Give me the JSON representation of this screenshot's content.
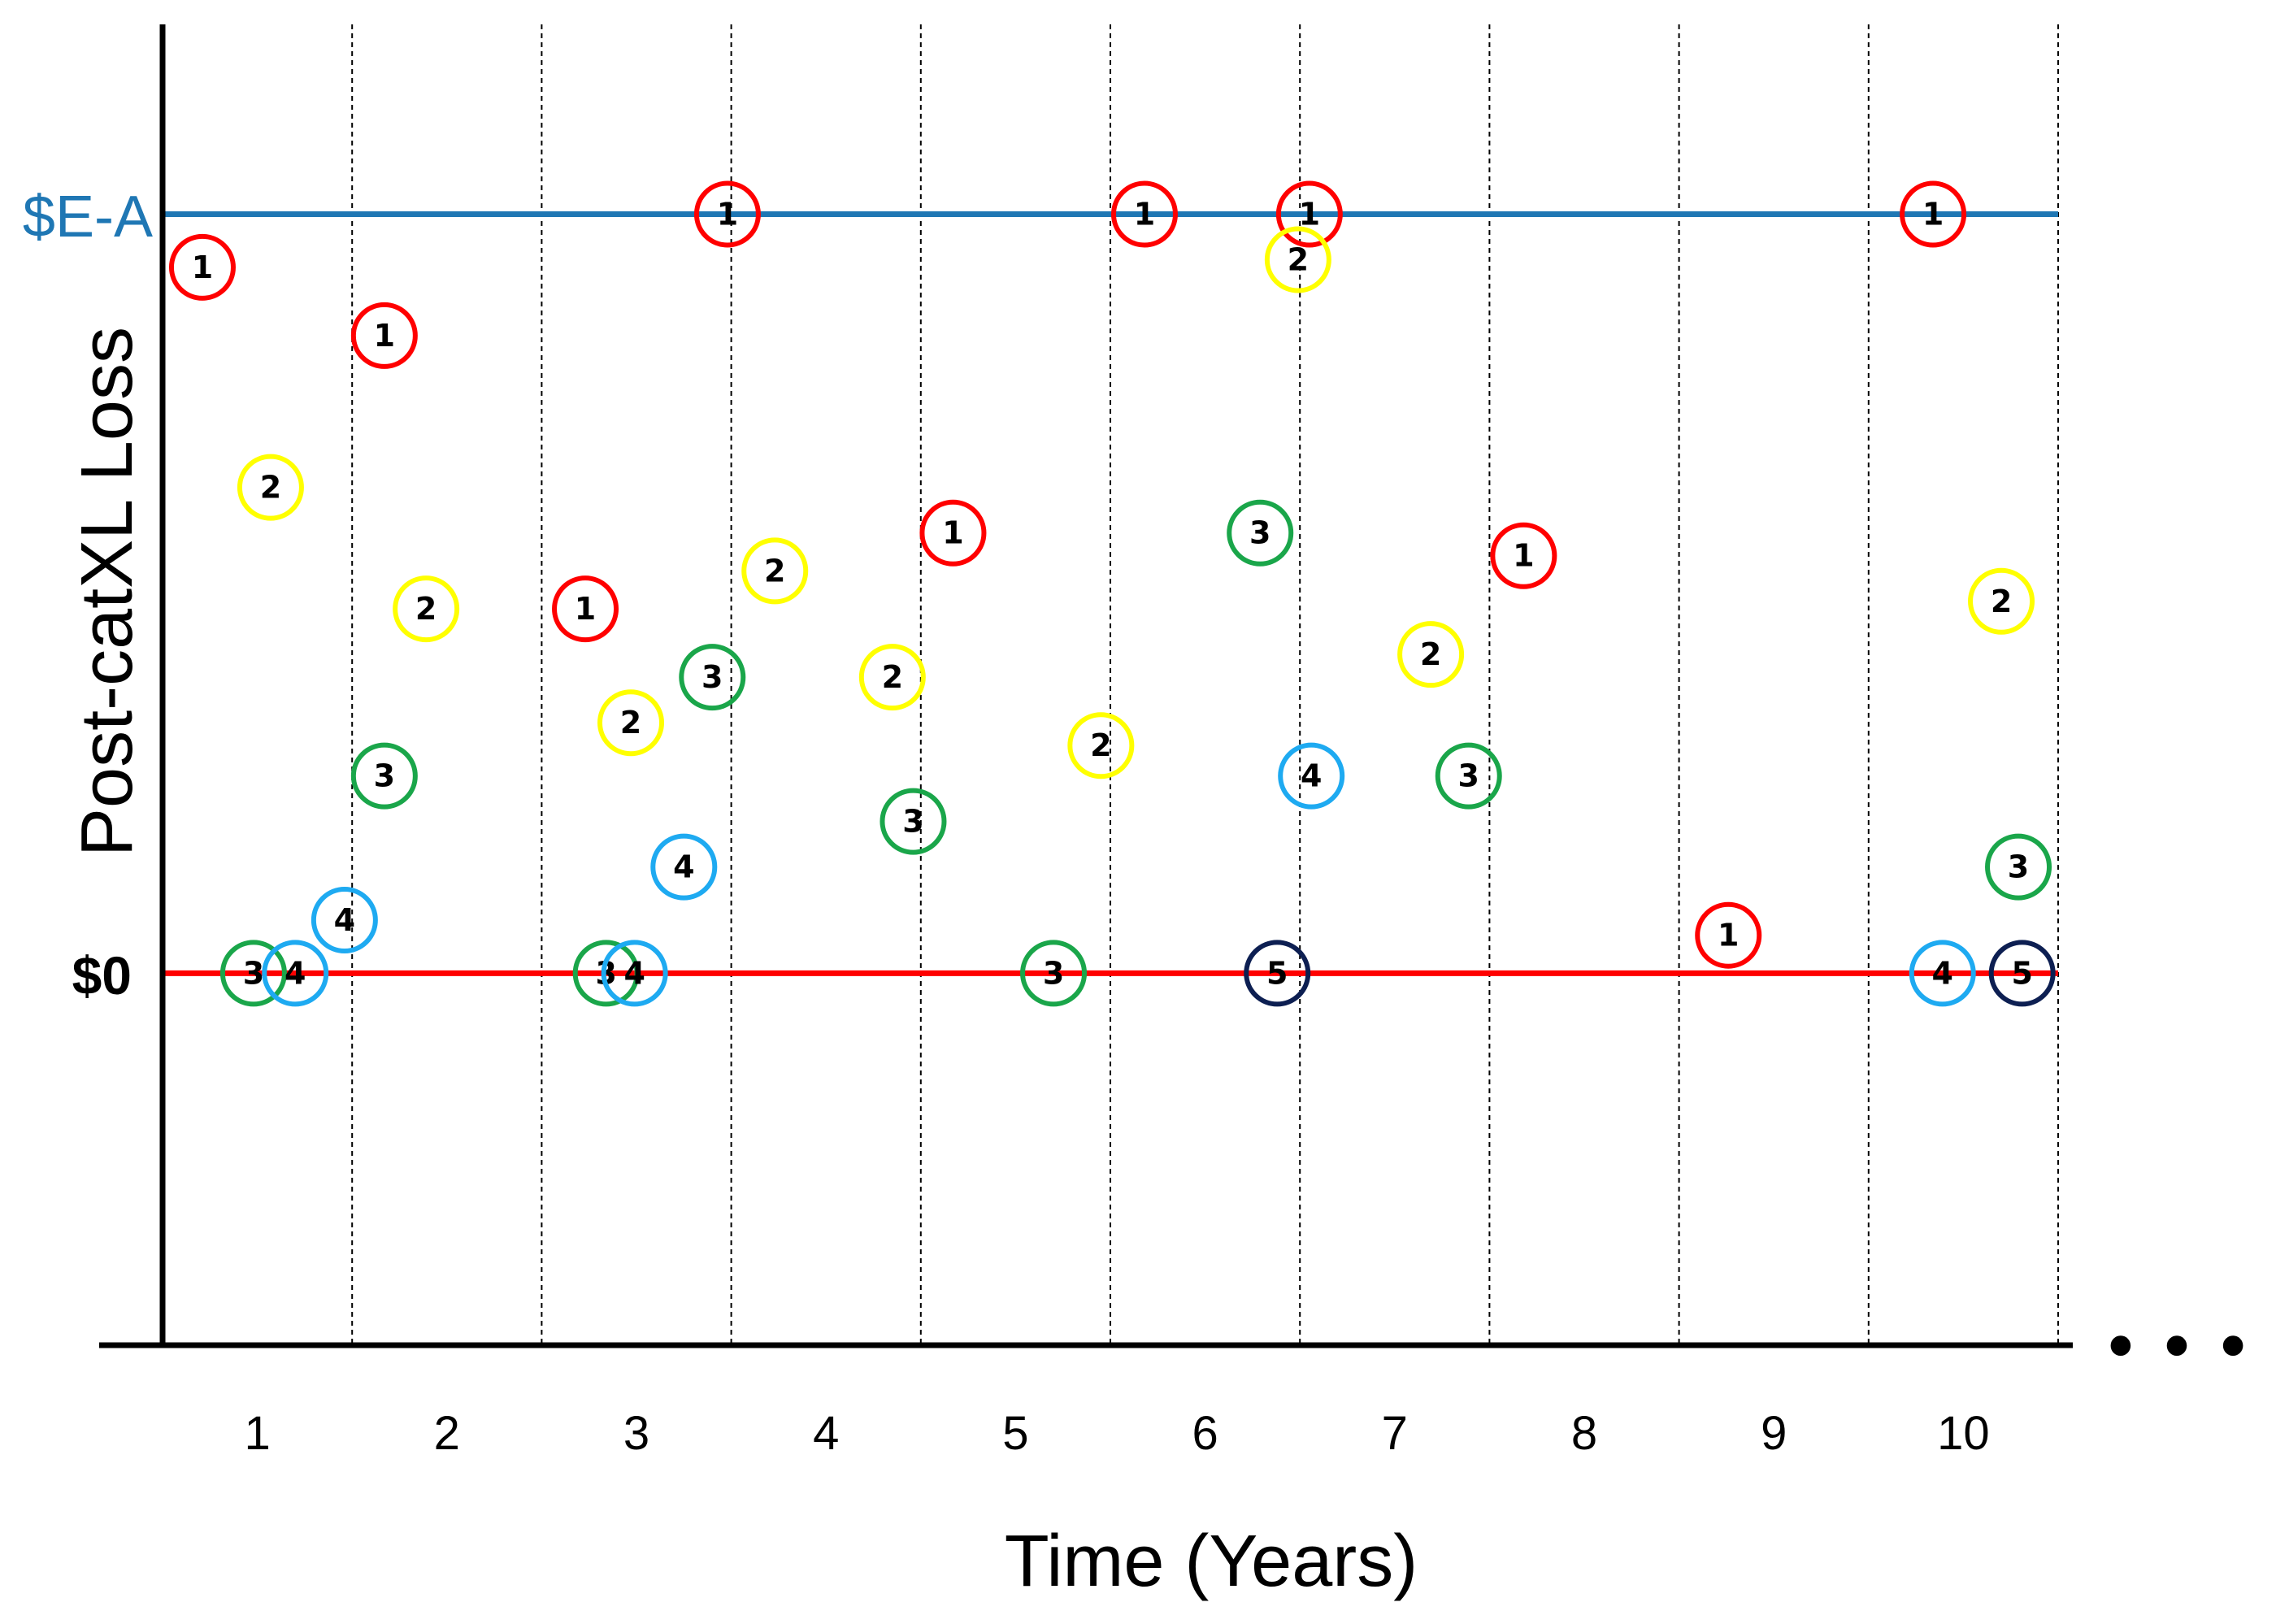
{
  "chart_data": {
    "type": "scatter",
    "title": "",
    "xlabel": "Time (Years)",
    "ylabel": "Post-catXL Loss",
    "x_ticks": [
      "1",
      "2",
      "3",
      "4",
      "5",
      "6",
      "7",
      "8",
      "9",
      "10"
    ],
    "y_reference_lines": [
      {
        "label": "$E-A",
        "value": 1.0,
        "color": "#1f77b4"
      },
      {
        "label": "$0",
        "value": 0.0,
        "color": "#ff0000"
      }
    ],
    "continuation": "• • •",
    "xlim": [
      0.5,
      10.5
    ],
    "ylim": [
      -0.49,
      1.25
    ],
    "grid": "vertical dashed lines between years",
    "event_colors": {
      "1": "#ff0000",
      "2": "#ffff00",
      "3": "#1aa64a",
      "4": "#1eaaf1",
      "5": "#0d1f52"
    },
    "points": [
      {
        "x": 0.71,
        "y": 0.93,
        "label": "1"
      },
      {
        "x": 1.67,
        "y": 0.84,
        "label": "1"
      },
      {
        "x": 2.73,
        "y": 0.48,
        "label": "1"
      },
      {
        "x": 3.48,
        "y": 1.0,
        "label": "1"
      },
      {
        "x": 4.67,
        "y": 0.58,
        "label": "1"
      },
      {
        "x": 5.68,
        "y": 1.0,
        "label": "1"
      },
      {
        "x": 6.55,
        "y": 1.0,
        "label": "1"
      },
      {
        "x": 7.68,
        "y": 0.55,
        "label": "1"
      },
      {
        "x": 8.76,
        "y": 0.05,
        "label": "1"
      },
      {
        "x": 9.84,
        "y": 1.0,
        "label": "1"
      },
      {
        "x": 1.07,
        "y": 0.64,
        "label": "2"
      },
      {
        "x": 1.89,
        "y": 0.48,
        "label": "2"
      },
      {
        "x": 2.97,
        "y": 0.33,
        "label": "2"
      },
      {
        "x": 3.73,
        "y": 0.53,
        "label": "2"
      },
      {
        "x": 4.35,
        "y": 0.39,
        "label": "2"
      },
      {
        "x": 5.45,
        "y": 0.3,
        "label": "2"
      },
      {
        "x": 6.49,
        "y": 0.94,
        "label": "2"
      },
      {
        "x": 7.19,
        "y": 0.42,
        "label": "2"
      },
      {
        "x": 10.2,
        "y": 0.49,
        "label": "2"
      },
      {
        "x": 0.98,
        "y": 0.0,
        "label": "3"
      },
      {
        "x": 1.67,
        "y": 0.26,
        "label": "3"
      },
      {
        "x": 2.84,
        "y": 0.0,
        "label": "3"
      },
      {
        "x": 3.4,
        "y": 0.39,
        "label": "3"
      },
      {
        "x": 4.46,
        "y": 0.2,
        "label": "3"
      },
      {
        "x": 5.2,
        "y": 0.0,
        "label": "3"
      },
      {
        "x": 6.29,
        "y": 0.58,
        "label": "3"
      },
      {
        "x": 7.39,
        "y": 0.26,
        "label": "3"
      },
      {
        "x": 10.29,
        "y": 0.14,
        "label": "3"
      },
      {
        "x": 1.2,
        "y": 0.0,
        "label": "4"
      },
      {
        "x": 1.46,
        "y": 0.07,
        "label": "4"
      },
      {
        "x": 2.99,
        "y": 0.0,
        "label": "4"
      },
      {
        "x": 3.25,
        "y": 0.14,
        "label": "4"
      },
      {
        "x": 6.56,
        "y": 0.26,
        "label": "4"
      },
      {
        "x": 9.89,
        "y": 0.0,
        "label": "4"
      },
      {
        "x": 6.38,
        "y": 0.0,
        "label": "5"
      },
      {
        "x": 10.31,
        "y": 0.0,
        "label": "5"
      }
    ]
  }
}
